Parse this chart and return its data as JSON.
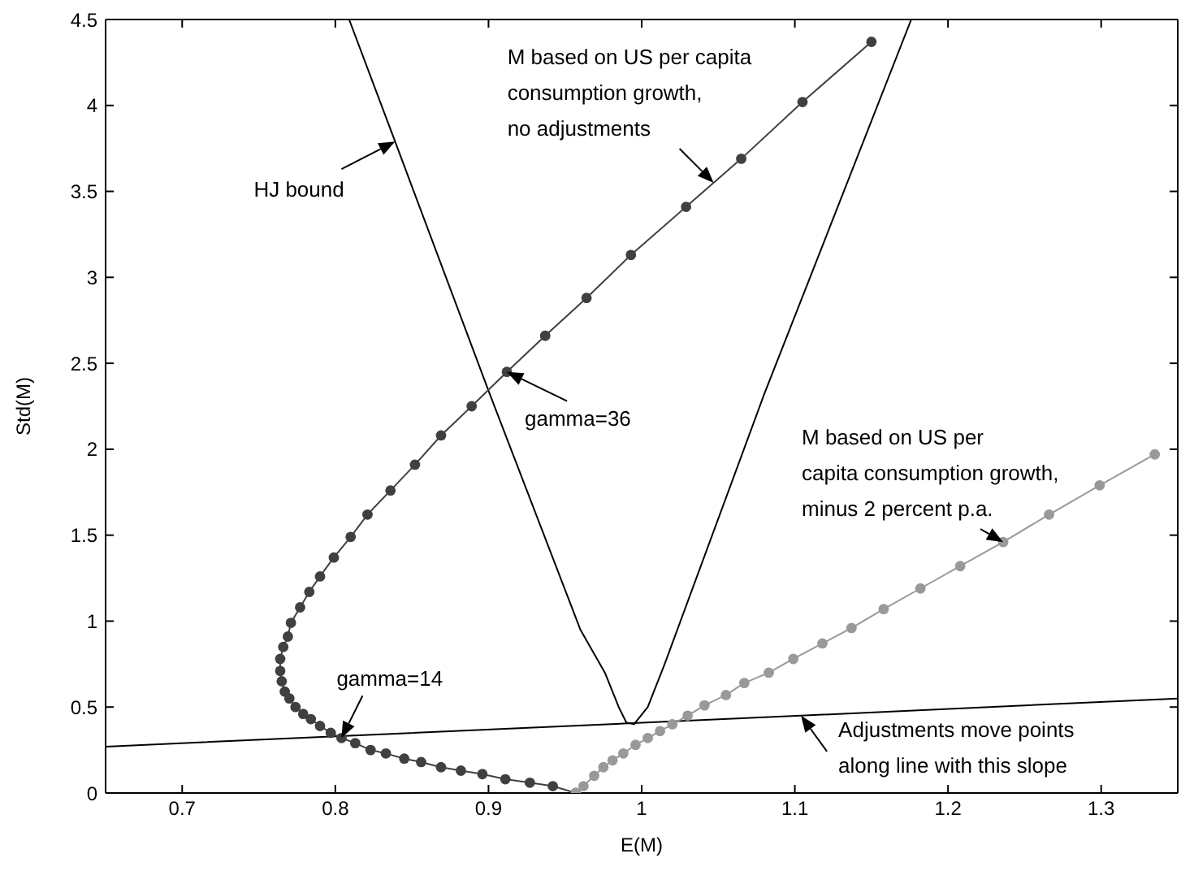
{
  "chart_data": {
    "type": "line",
    "xlabel": "E(M)",
    "ylabel": "Std(M)",
    "xlim": [
      0.65,
      1.35
    ],
    "ylim": [
      0,
      4.5
    ],
    "xticks": [
      0.7,
      0.8,
      0.9,
      1,
      1.1,
      1.2,
      1.3
    ],
    "yticks": [
      0,
      0.5,
      1,
      1.5,
      2,
      2.5,
      3,
      3.5,
      4,
      4.5
    ],
    "grid": false,
    "series": [
      {
        "marker": "none",
        "color": "#000000",
        "x": [
          0.809,
          0.839,
          0.9,
          0.96,
          0.976,
          0.985,
          0.99,
          0.995,
          1.004,
          1.015,
          1.08,
          1.176
        ],
        "values": [
          4.5,
          3.79,
          2.34,
          0.95,
          0.7,
          0.5,
          0.41,
          0.4,
          0.5,
          0.75,
          2.32,
          4.5
        ]
      },
      {
        "marker": "none",
        "color": "#000000",
        "x": [
          0.65,
          1.104,
          1.35
        ],
        "values": [
          0.27,
          0.45,
          0.55
        ]
      },
      {
        "marker": "circle",
        "color": "#404040",
        "x": [
          0.957,
          0.942,
          0.927,
          0.911,
          0.896,
          0.882,
          0.869,
          0.856,
          0.845,
          0.833,
          0.823,
          0.813,
          0.804,
          0.797,
          0.79,
          0.784,
          0.779,
          0.774,
          0.77,
          0.767,
          0.765,
          0.764,
          0.764,
          0.766,
          0.769,
          0.771,
          0.777,
          0.783,
          0.79,
          0.799,
          0.81,
          0.821,
          0.836,
          0.852,
          0.869,
          0.889,
          0.912,
          0.937,
          0.964,
          0.993,
          1.029,
          1.065,
          1.105,
          1.15
        ],
        "values": [
          0,
          0.04,
          0.06,
          0.08,
          0.11,
          0.13,
          0.15,
          0.18,
          0.2,
          0.23,
          0.25,
          0.29,
          0.32,
          0.35,
          0.39,
          0.43,
          0.46,
          0.5,
          0.55,
          0.59,
          0.65,
          0.71,
          0.78,
          0.85,
          0.91,
          0.99,
          1.08,
          1.17,
          1.26,
          1.37,
          1.49,
          1.62,
          1.76,
          1.91,
          2.08,
          2.25,
          2.45,
          2.66,
          2.88,
          3.13,
          3.41,
          3.69,
          4.02,
          4.37
        ]
      },
      {
        "marker": "circle",
        "color": "#999999",
        "x": [
          0.957,
          0.962,
          0.969,
          0.975,
          0.981,
          0.988,
          0.996,
          1.004,
          1.012,
          1.02,
          1.03,
          1.041,
          1.055,
          1.067,
          1.083,
          1.099,
          1.118,
          1.137,
          1.158,
          1.182,
          1.208,
          1.236,
          1.266,
          1.299,
          1.335
        ],
        "values": [
          0,
          0.04,
          0.1,
          0.15,
          0.19,
          0.23,
          0.28,
          0.32,
          0.36,
          0.4,
          0.45,
          0.51,
          0.57,
          0.64,
          0.7,
          0.78,
          0.87,
          0.96,
          1.07,
          1.19,
          1.32,
          1.46,
          1.62,
          1.79,
          1.97
        ]
      }
    ],
    "annotations": [
      {
        "text": "HJ bound",
        "x": 0.839,
        "y": 3.79
      },
      {
        "text": "M based on US per capita\nconsumption growth,\nno adjustments",
        "x": 1.047,
        "y": 3.55
      },
      {
        "text": "gamma=36",
        "x": 0.912,
        "y": 2.45
      },
      {
        "text": "gamma=14",
        "x": 0.804,
        "y": 0.32
      },
      {
        "text": "M based on US per\ncapita consumption growth,\nminus 2 percent p.a.",
        "x": 1.236,
        "y": 1.46
      },
      {
        "text": "Adjustments move points\nalong line with this slope",
        "x": 1.104,
        "y": 0.45
      }
    ]
  }
}
